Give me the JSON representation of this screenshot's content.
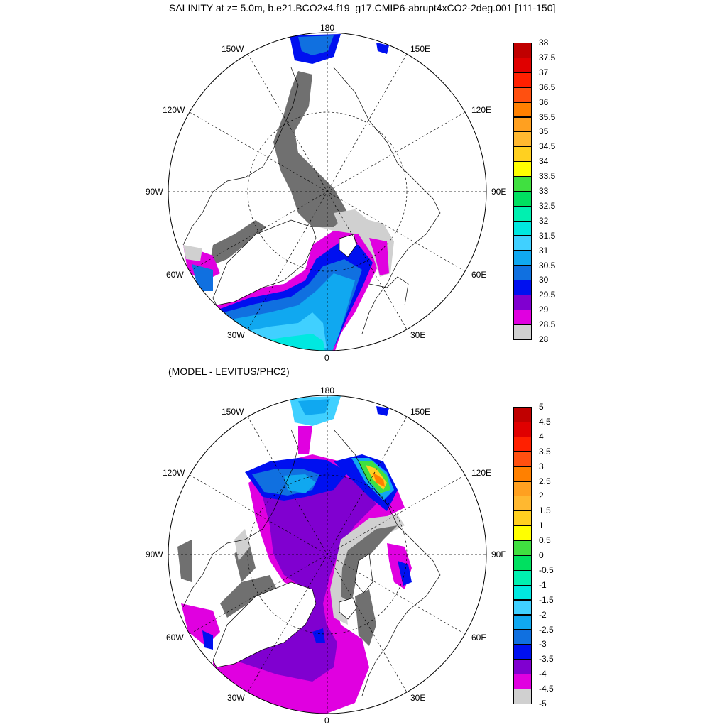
{
  "title": "SALINITY at z=   5.0m, b.e21.BCO2x4.f19_g17.CMIP6-abrupt4xCO2-2deg.001 [111-150]",
  "subtitle": "(MODEL - LEVITUS/PHC2)",
  "map_top": {
    "lon_labels": {
      "n180": "180",
      "w150": "150W",
      "e150": "150E",
      "w120": "120W",
      "e120": "120E",
      "w90": "90W",
      "e90": "90E",
      "w60": "60W",
      "e60": "60E",
      "w30": "30W",
      "e30": "30E",
      "s0": "0"
    }
  },
  "map_bottom": {
    "lon_labels": {
      "n180": "180",
      "w150": "150W",
      "e150": "150E",
      "w120": "120W",
      "e120": "120E",
      "w90": "90W",
      "e90": "90E",
      "w60": "60W",
      "e60": "60E",
      "w30": "30W",
      "e30": "30E",
      "s0": "0"
    }
  },
  "colorbar_top": {
    "labels": [
      "38",
      "37.5",
      "37",
      "36.5",
      "36",
      "35.5",
      "35",
      "34.5",
      "34",
      "33.5",
      "33",
      "32.5",
      "32",
      "31.5",
      "31",
      "30.5",
      "30",
      "29.5",
      "29",
      "28.5",
      "28"
    ],
    "colors": [
      "#c00000",
      "#e00000",
      "#ff2000",
      "#ff5010",
      "#ff8000",
      "#ffa020",
      "#ffb830",
      "#ffd020",
      "#ffff00",
      "#40e040",
      "#00e060",
      "#00f0b0",
      "#00e8e0",
      "#40d0ff",
      "#10a8f0",
      "#1070e0",
      "#0010f0",
      "#8000d0",
      "#e000e0",
      "#d0d0d0",
      "#707070"
    ]
  },
  "colorbar_bottom": {
    "labels": [
      "5",
      "4.5",
      "4",
      "3.5",
      "3",
      "2.5",
      "2",
      "1.5",
      "1",
      "0.5",
      "0",
      "-0.5",
      "-1",
      "-1.5",
      "-2",
      "-2.5",
      "-3",
      "-3.5",
      "-4",
      "-4.5",
      "-5"
    ],
    "colors": [
      "#c00000",
      "#e00000",
      "#ff2000",
      "#ff5010",
      "#ff8000",
      "#ffa020",
      "#ffb830",
      "#ffd020",
      "#ffff00",
      "#40e040",
      "#00e060",
      "#00f0b0",
      "#00e8e0",
      "#40d0ff",
      "#10a8f0",
      "#1070e0",
      "#0010f0",
      "#8000d0",
      "#e000e0",
      "#d0d0d0",
      "#707070"
    ]
  }
}
